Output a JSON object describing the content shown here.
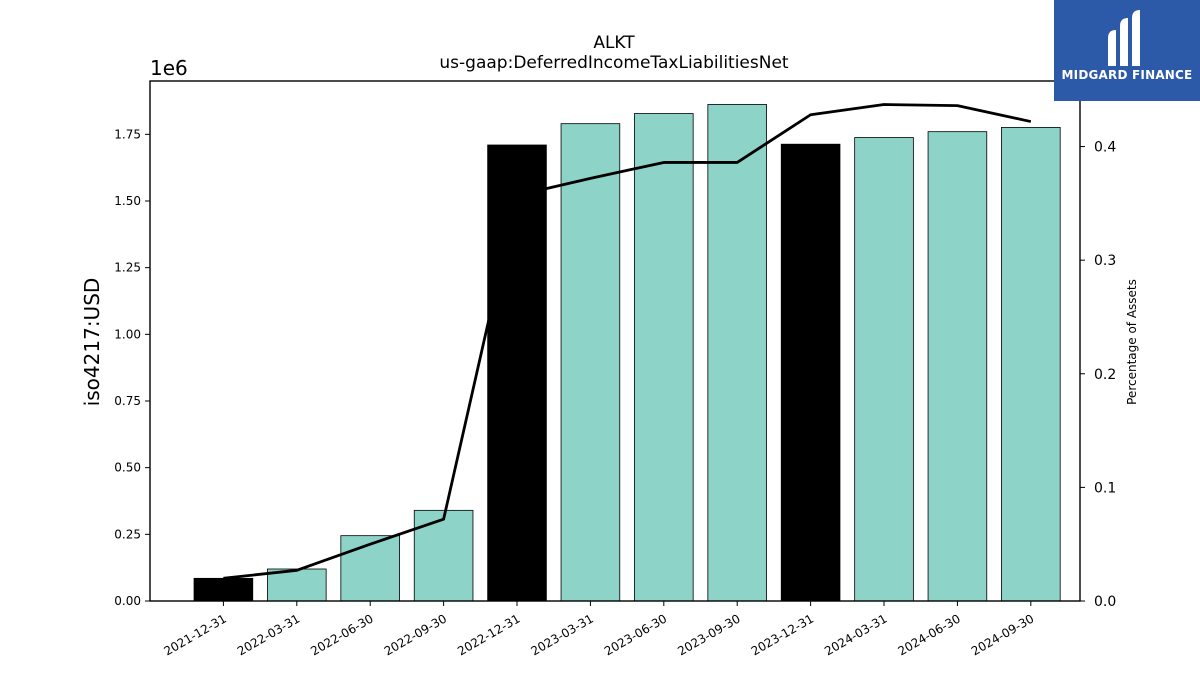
{
  "chart_data": {
    "type": "bar",
    "title": "ALKT",
    "subtitle": "us-gaap:DeferredIncomeTaxLiabilitiesNet",
    "ylabel": "iso4217:USD",
    "y_offset_label": "1e6",
    "y2label": "Percentage of Assets",
    "categories": [
      "2021-12-31",
      "2022-03-31",
      "2022-06-30",
      "2022-09-30",
      "2022-12-31",
      "2023-03-31",
      "2023-06-30",
      "2023-09-30",
      "2023-12-31",
      "2024-03-31",
      "2024-06-30",
      "2024-09-30"
    ],
    "values": [
      85000,
      120000,
      245000,
      340000,
      1710000,
      1790000,
      1828000,
      1862000,
      1713000,
      1738000,
      1760000,
      1776000
    ],
    "bar_colors": [
      "#000000",
      "#8dd3c7",
      "#8dd3c7",
      "#8dd3c7",
      "#000000",
      "#8dd3c7",
      "#8dd3c7",
      "#8dd3c7",
      "#000000",
      "#8dd3c7",
      "#8dd3c7",
      "#8dd3c7"
    ],
    "ylim": [
      0,
      1950000
    ],
    "yticks": [
      0,
      250000,
      500000,
      750000,
      1000000,
      1250000,
      1500000,
      1750000
    ],
    "ytick_labels": [
      "0.00",
      "0.25",
      "0.50",
      "0.75",
      "1.00",
      "1.25",
      "1.50",
      "1.75"
    ],
    "line_series": {
      "values": [
        0.02,
        0.027,
        0.05,
        0.072,
        0.357,
        0.372,
        0.386,
        0.386,
        0.428,
        0.437,
        0.436,
        0.422
      ],
      "color": "#000000"
    },
    "y2lim": [
      0,
      0.4577
    ],
    "y2ticks": [
      0.0,
      0.1,
      0.2,
      0.3,
      0.4
    ],
    "y2tick_labels": [
      "0.0",
      "0.1",
      "0.2",
      "0.3",
      "0.4"
    ],
    "grid": false
  },
  "logo": {
    "text": "MIDGARD FINANCE",
    "background": "#2d5aa8"
  }
}
